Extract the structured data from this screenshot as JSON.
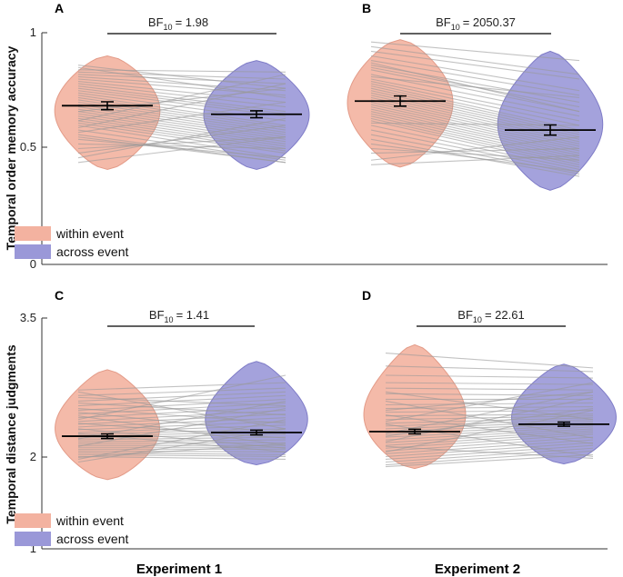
{
  "figure": {
    "xlabels": [
      "Experiment 1",
      "Experiment 2"
    ]
  },
  "colors": {
    "within": "#f3b2a0",
    "within_stroke": "#e39b88",
    "across": "#9a98d8",
    "across_stroke": "#7f7cc7"
  },
  "chart_data": [
    {
      "type": "violin",
      "panel": "A",
      "ylabel": "Temporal order memory accuracy",
      "ylim": [
        0,
        1
      ],
      "yticks": [
        "0",
        "0.5",
        "1"
      ],
      "bf": {
        "prefix": "BF",
        "sub": "10",
        "value": "= 1.98"
      },
      "legend": {
        "position": "bottom-left",
        "entries": [
          "within event",
          "across event"
        ]
      },
      "series": [
        {
          "name": "within event",
          "mean": 0.685,
          "sem": 0.017,
          "min": 0.41,
          "max": 0.9
        },
        {
          "name": "across event",
          "mean": 0.648,
          "sem": 0.015,
          "min": 0.41,
          "max": 0.88
        }
      ],
      "pairs": [
        [
          0.84,
          0.83
        ],
        [
          0.83,
          0.8
        ],
        [
          0.82,
          0.78
        ],
        [
          0.81,
          0.75
        ],
        [
          0.8,
          0.73
        ],
        [
          0.79,
          0.7
        ],
        [
          0.78,
          0.68
        ],
        [
          0.77,
          0.66
        ],
        [
          0.76,
          0.65
        ],
        [
          0.75,
          0.64
        ],
        [
          0.74,
          0.62
        ],
        [
          0.73,
          0.6
        ],
        [
          0.72,
          0.59
        ],
        [
          0.71,
          0.58
        ],
        [
          0.7,
          0.57
        ],
        [
          0.69,
          0.56
        ],
        [
          0.68,
          0.55
        ],
        [
          0.67,
          0.54
        ],
        [
          0.66,
          0.53
        ],
        [
          0.65,
          0.52
        ],
        [
          0.64,
          0.51
        ],
        [
          0.63,
          0.5
        ],
        [
          0.62,
          0.49
        ],
        [
          0.61,
          0.48
        ],
        [
          0.6,
          0.46
        ],
        [
          0.58,
          0.45
        ],
        [
          0.56,
          0.44
        ],
        [
          0.55,
          0.44
        ],
        [
          0.54,
          0.46
        ],
        [
          0.52,
          0.5
        ],
        [
          0.5,
          0.55
        ],
        [
          0.48,
          0.6
        ],
        [
          0.46,
          0.63
        ],
        [
          0.44,
          0.55
        ],
        [
          0.86,
          0.76
        ],
        [
          0.85,
          0.72
        ],
        [
          0.57,
          0.7
        ],
        [
          0.59,
          0.78
        ],
        [
          0.62,
          0.82
        ],
        [
          0.66,
          0.76
        ]
      ]
    },
    {
      "type": "violin",
      "panel": "B",
      "ylim": [
        0,
        1
      ],
      "bf": {
        "prefix": "BF",
        "sub": "10",
        "value": "= 2050.37"
      },
      "series": [
        {
          "name": "within event",
          "mean": 0.705,
          "sem": 0.022,
          "min": 0.42,
          "max": 0.97
        },
        {
          "name": "across event",
          "mean": 0.58,
          "sem": 0.022,
          "min": 0.32,
          "max": 0.92
        }
      ],
      "pairs": [
        [
          0.96,
          0.88
        ],
        [
          0.94,
          0.82
        ],
        [
          0.92,
          0.8
        ],
        [
          0.9,
          0.75
        ],
        [
          0.88,
          0.73
        ],
        [
          0.86,
          0.7
        ],
        [
          0.85,
          0.68
        ],
        [
          0.84,
          0.66
        ],
        [
          0.82,
          0.64
        ],
        [
          0.8,
          0.62
        ],
        [
          0.79,
          0.6
        ],
        [
          0.78,
          0.58
        ],
        [
          0.77,
          0.57
        ],
        [
          0.76,
          0.56
        ],
        [
          0.75,
          0.55
        ],
        [
          0.74,
          0.54
        ],
        [
          0.73,
          0.53
        ],
        [
          0.72,
          0.52
        ],
        [
          0.71,
          0.51
        ],
        [
          0.7,
          0.5
        ],
        [
          0.69,
          0.49
        ],
        [
          0.68,
          0.48
        ],
        [
          0.67,
          0.47
        ],
        [
          0.66,
          0.46
        ],
        [
          0.65,
          0.45
        ],
        [
          0.64,
          0.44
        ],
        [
          0.63,
          0.43
        ],
        [
          0.62,
          0.42
        ],
        [
          0.6,
          0.41
        ],
        [
          0.58,
          0.4
        ],
        [
          0.56,
          0.39
        ],
        [
          0.54,
          0.38
        ],
        [
          0.52,
          0.4
        ],
        [
          0.5,
          0.45
        ],
        [
          0.48,
          0.5
        ],
        [
          0.45,
          0.55
        ],
        [
          0.43,
          0.47
        ],
        [
          0.81,
          0.72
        ],
        [
          0.87,
          0.66
        ],
        [
          0.61,
          0.6
        ]
      ]
    },
    {
      "type": "violin",
      "panel": "C",
      "ylabel": "Temporal distance judgments",
      "ylim": [
        1,
        3.5
      ],
      "yticks": [
        "1",
        "2",
        "3.5"
      ],
      "bf": {
        "prefix": "BF",
        "sub": "10",
        "value": "= 1.41"
      },
      "legend": {
        "position": "bottom-left",
        "entries": [
          "within event",
          "across event"
        ]
      },
      "series": [
        {
          "name": "within event",
          "mean": 2.22,
          "sem": 0.025,
          "min": 1.75,
          "max": 2.94
        },
        {
          "name": "across event",
          "mean": 2.26,
          "sem": 0.025,
          "min": 1.91,
          "max": 3.03
        }
      ],
      "pairs": [
        [
          2.72,
          2.8
        ],
        [
          2.66,
          2.74
        ],
        [
          2.6,
          2.7
        ],
        [
          2.55,
          2.66
        ],
        [
          2.5,
          2.62
        ],
        [
          2.46,
          2.58
        ],
        [
          2.42,
          2.54
        ],
        [
          2.38,
          2.5
        ],
        [
          2.35,
          2.46
        ],
        [
          2.32,
          2.42
        ],
        [
          2.29,
          2.38
        ],
        [
          2.26,
          2.34
        ],
        [
          2.24,
          2.3
        ],
        [
          2.22,
          2.27
        ],
        [
          2.2,
          2.24
        ],
        [
          2.18,
          2.21
        ],
        [
          2.16,
          2.18
        ],
        [
          2.14,
          2.15
        ],
        [
          2.12,
          2.12
        ],
        [
          2.1,
          2.1
        ],
        [
          2.08,
          2.08
        ],
        [
          2.06,
          2.05
        ],
        [
          2.04,
          2.02
        ],
        [
          2.02,
          2.0
        ],
        [
          2.0,
          1.97
        ],
        [
          1.97,
          2.4
        ],
        [
          1.94,
          2.3
        ],
        [
          2.3,
          2.09
        ],
        [
          2.36,
          2.2
        ],
        [
          2.44,
          2.12
        ],
        [
          2.52,
          2.36
        ],
        [
          2.58,
          2.45
        ],
        [
          2.64,
          2.55
        ],
        [
          2.7,
          2.3
        ],
        [
          2.4,
          2.88
        ],
        [
          2.19,
          2.6
        ],
        [
          2.11,
          2.52
        ],
        [
          1.99,
          2.14
        ],
        [
          2.25,
          2.05
        ],
        [
          2.48,
          2.25
        ]
      ]
    },
    {
      "type": "violin",
      "panel": "D",
      "ylim": [
        1,
        3.5
      ],
      "bf": {
        "prefix": "BF",
        "sub": "10",
        "value": "= 22.61"
      },
      "series": [
        {
          "name": "within event",
          "mean": 2.27,
          "sem": 0.025,
          "min": 1.87,
          "max": 3.21
        },
        {
          "name": "across event",
          "mean": 2.35,
          "sem": 0.022,
          "min": 1.92,
          "max": 3.0
        }
      ],
      "pairs": [
        [
          3.12,
          2.96
        ],
        [
          2.98,
          2.92
        ],
        [
          2.88,
          2.85
        ],
        [
          2.8,
          2.78
        ],
        [
          2.74,
          2.72
        ],
        [
          2.68,
          2.66
        ],
        [
          2.62,
          2.62
        ],
        [
          2.56,
          2.58
        ],
        [
          2.52,
          2.54
        ],
        [
          2.48,
          2.5
        ],
        [
          2.44,
          2.46
        ],
        [
          2.4,
          2.44
        ],
        [
          2.36,
          2.42
        ],
        [
          2.33,
          2.4
        ],
        [
          2.3,
          2.38
        ],
        [
          2.27,
          2.36
        ],
        [
          2.24,
          2.34
        ],
        [
          2.21,
          2.32
        ],
        [
          2.18,
          2.3
        ],
        [
          2.15,
          2.28
        ],
        [
          2.12,
          2.26
        ],
        [
          2.09,
          2.24
        ],
        [
          2.06,
          2.21
        ],
        [
          2.03,
          2.18
        ],
        [
          2.0,
          2.15
        ],
        [
          1.97,
          2.12
        ],
        [
          1.94,
          2.09
        ],
        [
          1.91,
          2.06
        ],
        [
          1.89,
          2.02
        ],
        [
          2.38,
          2.8
        ],
        [
          2.25,
          2.7
        ],
        [
          2.16,
          2.64
        ],
        [
          2.05,
          2.5
        ],
        [
          2.45,
          2.14
        ],
        [
          2.6,
          2.2
        ],
        [
          2.7,
          2.4
        ],
        [
          2.35,
          2.0
        ],
        [
          2.11,
          1.98
        ],
        [
          2.22,
          2.52
        ],
        [
          2.5,
          2.7
        ]
      ]
    }
  ]
}
